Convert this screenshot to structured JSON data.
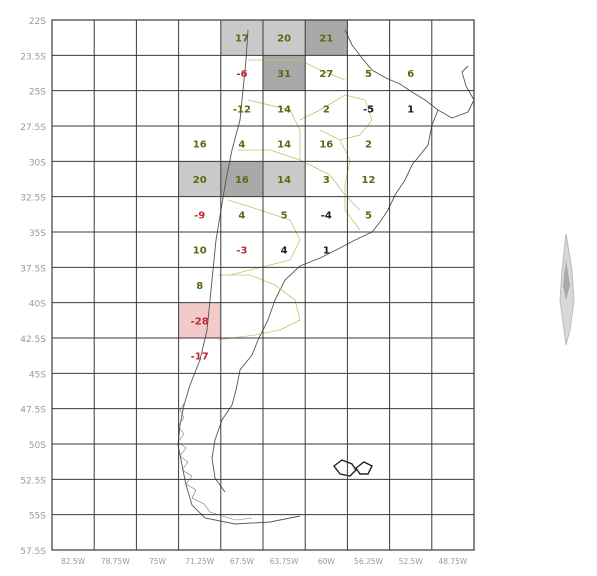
{
  "map": {
    "y_ticks": [
      "22S",
      "23.5S",
      "25S",
      "27.5S",
      "30S",
      "32.5S",
      "35S",
      "37.5S",
      "40S",
      "42.5S",
      "45S",
      "47.5S",
      "50S",
      "52.5S",
      "55S",
      "57.5S"
    ],
    "x_ticks": [
      "82.5W",
      "78.75W",
      "75W",
      "71.25W",
      "67.5W",
      "63.75W",
      "60W",
      "56.25W",
      "52.5W",
      "48.75W"
    ],
    "grid": {
      "cols": 10,
      "rows": 15
    },
    "colors": {
      "cell_dark": "#a9a9a9",
      "cell_medium": "#c9c9c9",
      "cell_red": "#f2caca",
      "text_green": "#5a6a10",
      "text_red": "#c0283a",
      "text_black": "#1a1a1a"
    },
    "cells": [
      {
        "row": 0,
        "col": 4,
        "text": "17",
        "color": "text_green",
        "shade": "cell_medium"
      },
      {
        "row": 0,
        "col": 5,
        "text": "20",
        "color": "text_green",
        "shade": "cell_medium"
      },
      {
        "row": 0,
        "col": 6,
        "text": "21",
        "color": "text_green",
        "shade": "cell_dark"
      },
      {
        "row": 1,
        "col": 4,
        "text": "-6",
        "color": "text_red",
        "shade": ""
      },
      {
        "row": 1,
        "col": 5,
        "text": "31",
        "color": "text_green",
        "shade": "cell_dark"
      },
      {
        "row": 1,
        "col": 6,
        "text": "27",
        "color": "text_green",
        "shade": ""
      },
      {
        "row": 1,
        "col": 7,
        "text": "5",
        "color": "text_green",
        "shade": ""
      },
      {
        "row": 1,
        "col": 8,
        "text": "6",
        "color": "text_green",
        "shade": ""
      },
      {
        "row": 2,
        "col": 4,
        "text": "-12",
        "color": "text_green",
        "shade": ""
      },
      {
        "row": 2,
        "col": 5,
        "text": "14",
        "color": "text_green",
        "shade": ""
      },
      {
        "row": 2,
        "col": 6,
        "text": "2",
        "color": "text_green",
        "shade": ""
      },
      {
        "row": 2,
        "col": 7,
        "text": "-5",
        "color": "text_black",
        "shade": ""
      },
      {
        "row": 2,
        "col": 8,
        "text": "1",
        "color": "text_black",
        "shade": ""
      },
      {
        "row": 3,
        "col": 3,
        "text": "16",
        "color": "text_green",
        "shade": ""
      },
      {
        "row": 3,
        "col": 4,
        "text": "4",
        "color": "text_green",
        "shade": ""
      },
      {
        "row": 3,
        "col": 5,
        "text": "14",
        "color": "text_green",
        "shade": ""
      },
      {
        "row": 3,
        "col": 6,
        "text": "16",
        "color": "text_green",
        "shade": ""
      },
      {
        "row": 3,
        "col": 7,
        "text": "2",
        "color": "text_green",
        "shade": ""
      },
      {
        "row": 4,
        "col": 3,
        "text": "20",
        "color": "text_green",
        "shade": "cell_medium"
      },
      {
        "row": 4,
        "col": 4,
        "text": "16",
        "color": "text_green",
        "shade": "cell_dark"
      },
      {
        "row": 4,
        "col": 5,
        "text": "14",
        "color": "text_green",
        "shade": "cell_medium"
      },
      {
        "row": 4,
        "col": 6,
        "text": "3",
        "color": "text_green",
        "shade": ""
      },
      {
        "row": 4,
        "col": 7,
        "text": "12",
        "color": "text_green",
        "shade": ""
      },
      {
        "row": 5,
        "col": 3,
        "text": "-9",
        "color": "text_red",
        "shade": ""
      },
      {
        "row": 5,
        "col": 4,
        "text": "4",
        "color": "text_green",
        "shade": ""
      },
      {
        "row": 5,
        "col": 5,
        "text": "5",
        "color": "text_green",
        "shade": ""
      },
      {
        "row": 5,
        "col": 6,
        "text": "-4",
        "color": "text_black",
        "shade": ""
      },
      {
        "row": 5,
        "col": 7,
        "text": "5",
        "color": "text_green",
        "shade": ""
      },
      {
        "row": 6,
        "col": 3,
        "text": "10",
        "color": "text_green",
        "shade": ""
      },
      {
        "row": 6,
        "col": 4,
        "text": "-3",
        "color": "text_red",
        "shade": ""
      },
      {
        "row": 6,
        "col": 5,
        "text": "4",
        "color": "text_black",
        "shade": ""
      },
      {
        "row": 6,
        "col": 6,
        "text": "1",
        "color": "text_black",
        "shade": ""
      },
      {
        "row": 7,
        "col": 3,
        "text": "8",
        "color": "text_green",
        "shade": ""
      },
      {
        "row": 8,
        "col": 3,
        "text": "-28",
        "color": "text_red",
        "shade": "cell_red"
      },
      {
        "row": 9,
        "col": 3,
        "text": "-17",
        "color": "text_red",
        "shade": ""
      }
    ]
  }
}
